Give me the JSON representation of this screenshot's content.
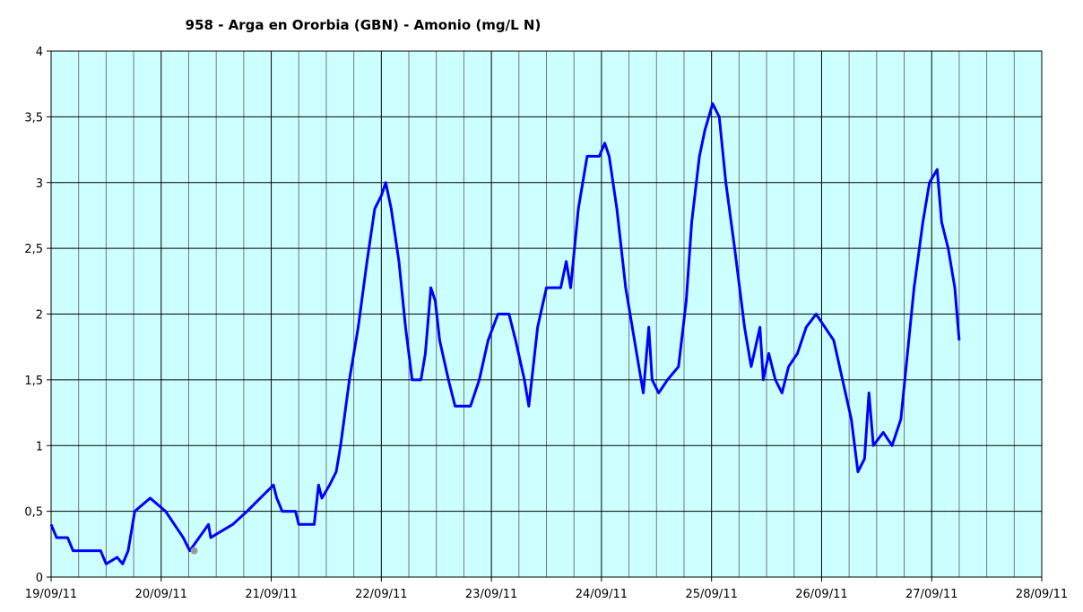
{
  "chart_data": {
    "type": "line",
    "title": "958 - Arga en Ororbia (GBN) - Amonio (mg/L N)",
    "xlim": [
      0,
      9
    ],
    "xticks": [
      {
        "value": 0,
        "label": "19/09/11"
      },
      {
        "value": 1,
        "label": "20/09/11"
      },
      {
        "value": 2,
        "label": "21/09/11"
      },
      {
        "value": 3,
        "label": "22/09/11"
      },
      {
        "value": 4,
        "label": "23/09/11"
      },
      {
        "value": 5,
        "label": "24/09/11"
      },
      {
        "value": 6,
        "label": "25/09/11"
      },
      {
        "value": 7,
        "label": "26/09/11"
      },
      {
        "value": 8,
        "label": "27/09/11"
      },
      {
        "value": 9,
        "label": "28/09/11"
      }
    ],
    "xminorticks": [
      0.25,
      0.5,
      0.75,
      1.25,
      1.5,
      1.75,
      2.25,
      2.5,
      2.75,
      3.25,
      3.5,
      3.75,
      4.25,
      4.5,
      4.75,
      5.25,
      5.5,
      5.75,
      6.25,
      6.5,
      6.75,
      7.25,
      7.5,
      7.75,
      8.25,
      8.5,
      8.75
    ],
    "ylim": [
      0,
      4
    ],
    "yticks": [
      0,
      {
        "value": 0.5,
        "label": "0,5"
      },
      1,
      {
        "value": 1.5,
        "label": "1,5"
      },
      2,
      {
        "value": 2.5,
        "label": "2,5"
      },
      3,
      {
        "value": 3.5,
        "label": "3,5"
      },
      4
    ],
    "grid": true,
    "background": "#ccffff",
    "series": [
      {
        "color": "#0000ff",
        "x": [
          0,
          0.05,
          0.15,
          0.2,
          0.45,
          0.5,
          0.6,
          0.65,
          0.7,
          0.76,
          0.9,
          1.04,
          1.12,
          1.2,
          1.26,
          1.43,
          1.45,
          1.65,
          1.78,
          1.9,
          2.02,
          2.05,
          2.1,
          2.22,
          2.25,
          2.39,
          2.43,
          2.46,
          2.53,
          2.59,
          2.63,
          2.71,
          2.79,
          2.87,
          2.94,
          3.0,
          3.04,
          3.09,
          3.16,
          3.22,
          3.28,
          3.36,
          3.4,
          3.45,
          3.49,
          3.53,
          3.61,
          3.67,
          3.81,
          3.89,
          3.97,
          4.06,
          4.16,
          4.22,
          4.3,
          4.34,
          4.42,
          4.5,
          4.63,
          4.68,
          4.72,
          4.79,
          4.87,
          4.98,
          5.03,
          5.07,
          5.14,
          5.22,
          5.3,
          5.38,
          5.43,
          5.46,
          5.52,
          5.6,
          5.7,
          5.77,
          5.82,
          5.89,
          5.94,
          6.01,
          6.07,
          6.13,
          6.21,
          6.3,
          6.36,
          6.44,
          6.47,
          6.52,
          6.58,
          6.64,
          6.7,
          6.78,
          6.86,
          6.95,
          7.03,
          7.11,
          7.19,
          7.27,
          7.33,
          7.39,
          7.43,
          7.47,
          7.56,
          7.64,
          7.72,
          7.78,
          7.84,
          7.92,
          7.98,
          8.05,
          8.09,
          8.15,
          8.21,
          8.25
        ],
        "values": [
          0.4,
          0.3,
          0.3,
          0.2,
          0.2,
          0.1,
          0.15,
          0.1,
          0.2,
          0.5,
          0.6,
          0.5,
          0.4,
          0.3,
          0.2,
          0.4,
          0.3,
          0.4,
          0.5,
          0.6,
          0.7,
          0.6,
          0.5,
          0.5,
          0.4,
          0.4,
          0.7,
          0.6,
          0.7,
          0.8,
          1.0,
          1.5,
          1.9,
          2.4,
          2.8,
          2.9,
          3.0,
          2.8,
          2.4,
          1.9,
          1.5,
          1.5,
          1.7,
          2.2,
          2.1,
          1.8,
          1.5,
          1.3,
          1.3,
          1.5,
          1.8,
          2.0,
          2.0,
          1.8,
          1.5,
          1.3,
          1.9,
          2.2,
          2.2,
          2.4,
          2.2,
          2.8,
          3.2,
          3.2,
          3.3,
          3.2,
          2.8,
          2.2,
          1.8,
          1.4,
          1.9,
          1.5,
          1.4,
          1.5,
          1.6,
          2.1,
          2.7,
          3.2,
          3.4,
          3.6,
          3.5,
          3.0,
          2.5,
          1.9,
          1.6,
          1.9,
          1.5,
          1.7,
          1.5,
          1.4,
          1.6,
          1.7,
          1.9,
          2.0,
          1.9,
          1.8,
          1.5,
          1.2,
          0.8,
          0.9,
          1.4,
          1.0,
          1.1,
          1.0,
          1.2,
          1.7,
          2.2,
          2.7,
          3.0,
          3.1,
          2.7,
          2.5,
          2.2,
          1.8
        ]
      }
    ],
    "highlight": {
      "x": 1.3,
      "y": 0.2,
      "color": "#999999"
    }
  }
}
